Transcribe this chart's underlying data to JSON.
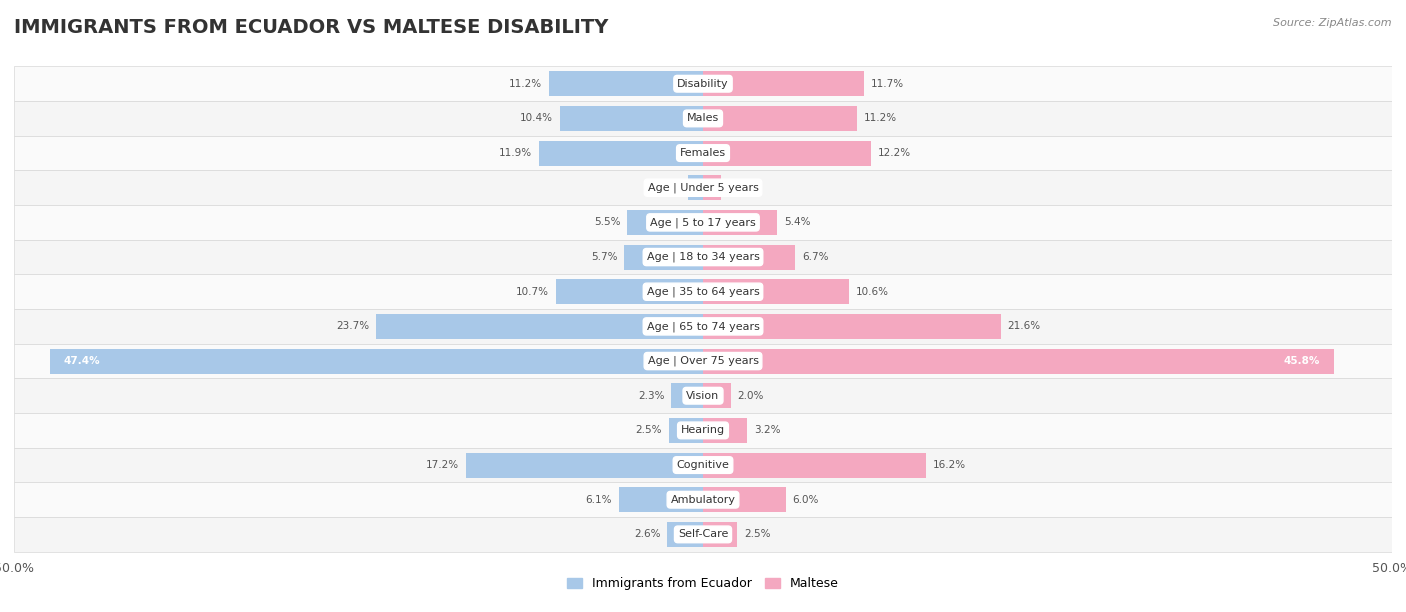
{
  "title": "IMMIGRANTS FROM ECUADOR VS MALTESE DISABILITY",
  "source": "Source: ZipAtlas.com",
  "categories": [
    "Disability",
    "Males",
    "Females",
    "Age | Under 5 years",
    "Age | 5 to 17 years",
    "Age | 18 to 34 years",
    "Age | 35 to 64 years",
    "Age | 65 to 74 years",
    "Age | Over 75 years",
    "Vision",
    "Hearing",
    "Cognitive",
    "Ambulatory",
    "Self-Care"
  ],
  "ecuador_values": [
    11.2,
    10.4,
    11.9,
    1.1,
    5.5,
    5.7,
    10.7,
    23.7,
    47.4,
    2.3,
    2.5,
    17.2,
    6.1,
    2.6
  ],
  "maltese_values": [
    11.7,
    11.2,
    12.2,
    1.3,
    5.4,
    6.7,
    10.6,
    21.6,
    45.8,
    2.0,
    3.2,
    16.2,
    6.0,
    2.5
  ],
  "ecuador_color": "#A8C8E8",
  "maltese_color": "#F4A8C0",
  "ecuador_color_dark": "#7BAFD4",
  "maltese_color_dark": "#EF7FA4",
  "ecuador_label": "Immigrants from Ecuador",
  "maltese_label": "Maltese",
  "axis_max": 50.0,
  "fig_bg": "#ffffff",
  "row_bg_odd": "#f5f5f5",
  "row_bg_even": "#fafafa",
  "separator_color": "#d8d8d8",
  "title_fontsize": 14,
  "label_fontsize": 8,
  "value_fontsize": 7.5,
  "over75_idx": 8
}
